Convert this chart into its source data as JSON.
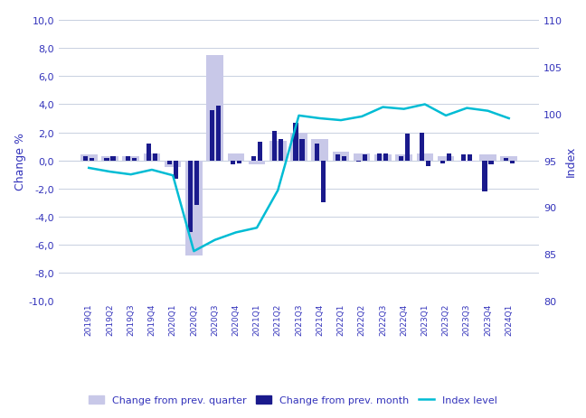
{
  "quarters": [
    "2019Q1",
    "2019Q2",
    "2019Q3",
    "2019Q4",
    "2020Q1",
    "2020Q2",
    "2020Q3",
    "2020Q4",
    "2021Q1",
    "2021Q2",
    "2021Q3",
    "2021Q4",
    "2022Q1",
    "2022Q2",
    "2022Q3",
    "2022Q4",
    "2023Q1",
    "2023Q2",
    "2023Q3",
    "2023Q4",
    "2024Q1"
  ],
  "change_quarter": [
    0.4,
    0.3,
    0.3,
    0.5,
    -0.5,
    -6.8,
    7.5,
    0.5,
    -0.3,
    1.4,
    2.0,
    1.5,
    0.6,
    0.5,
    0.4,
    0.4,
    0.5,
    0.3,
    -0.1,
    0.4,
    0.3
  ],
  "change_month_a": [
    0.3,
    0.2,
    0.3,
    1.2,
    -0.3,
    -5.1,
    3.6,
    -0.3,
    0.3,
    2.1,
    2.7,
    1.2,
    0.4,
    -0.1,
    0.5,
    0.3,
    2.0,
    -0.2,
    0.4,
    -2.2,
    0.2
  ],
  "change_month_b": [
    0.2,
    0.3,
    0.2,
    0.5,
    -1.3,
    -3.2,
    3.9,
    -0.2,
    1.3,
    1.5,
    1.5,
    -3.0,
    0.3,
    0.4,
    0.5,
    1.9,
    -0.4,
    0.5,
    0.4,
    -0.3,
    -0.2
  ],
  "index_level": [
    94.2,
    93.8,
    93.5,
    94.0,
    93.4,
    85.3,
    86.5,
    87.3,
    87.8,
    91.8,
    99.8,
    99.5,
    99.3,
    99.7,
    100.7,
    100.5,
    101.0,
    99.8,
    100.6,
    100.3,
    99.5
  ],
  "left_ylim": [
    -10.0,
    10.0
  ],
  "left_yticks": [
    -10.0,
    -8.0,
    -6.0,
    -4.0,
    -2.0,
    0.0,
    2.0,
    4.0,
    6.0,
    8.0,
    10.0
  ],
  "right_ylim": [
    80,
    110
  ],
  "right_yticks": [
    80,
    85,
    90,
    95,
    100,
    105,
    110
  ],
  "bar_quarter_color": "#c8c8e8",
  "bar_month_color": "#1a1a8c",
  "line_color": "#00bcd4",
  "left_ylabel": "Change %",
  "right_ylabel": "Index",
  "text_color": "#3333bb",
  "grid_color": "#c8d0e0",
  "legend_quarter": "Change from prev. quarter",
  "legend_month": "Change from prev. month",
  "legend_index": "Index level",
  "fig_width": 6.48,
  "fig_height": 4.64,
  "dpi": 100
}
